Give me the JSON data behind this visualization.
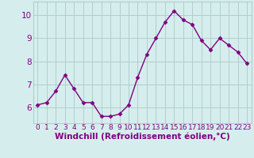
{
  "x": [
    0,
    1,
    2,
    3,
    4,
    5,
    6,
    7,
    8,
    9,
    10,
    11,
    12,
    13,
    14,
    15,
    16,
    17,
    18,
    19,
    20,
    21,
    22,
    23
  ],
  "y": [
    6.1,
    6.2,
    6.7,
    7.4,
    6.8,
    6.2,
    6.2,
    5.6,
    5.6,
    5.7,
    6.1,
    7.3,
    8.3,
    9.0,
    9.7,
    10.2,
    9.8,
    9.6,
    8.9,
    8.5,
    9.0,
    8.7,
    8.4,
    7.9
  ],
  "line_color": "#800080",
  "marker": "D",
  "marker_size": 2.5,
  "line_width": 1.0,
  "bg_color": "#d5eeed",
  "grid_color": "#b0cdcc",
  "xlabel": "Windchill (Refroidissement éolien,°C)",
  "xlabel_color": "#800080",
  "xlabel_fontsize": 7.5,
  "tick_color": "#800080",
  "tick_fontsize": 6.5,
  "ytick_fontsize": 7.5,
  "yticks": [
    6,
    7,
    8,
    9,
    10
  ],
  "ylim": [
    5.3,
    10.6
  ],
  "xlim": [
    -0.5,
    23.5
  ]
}
